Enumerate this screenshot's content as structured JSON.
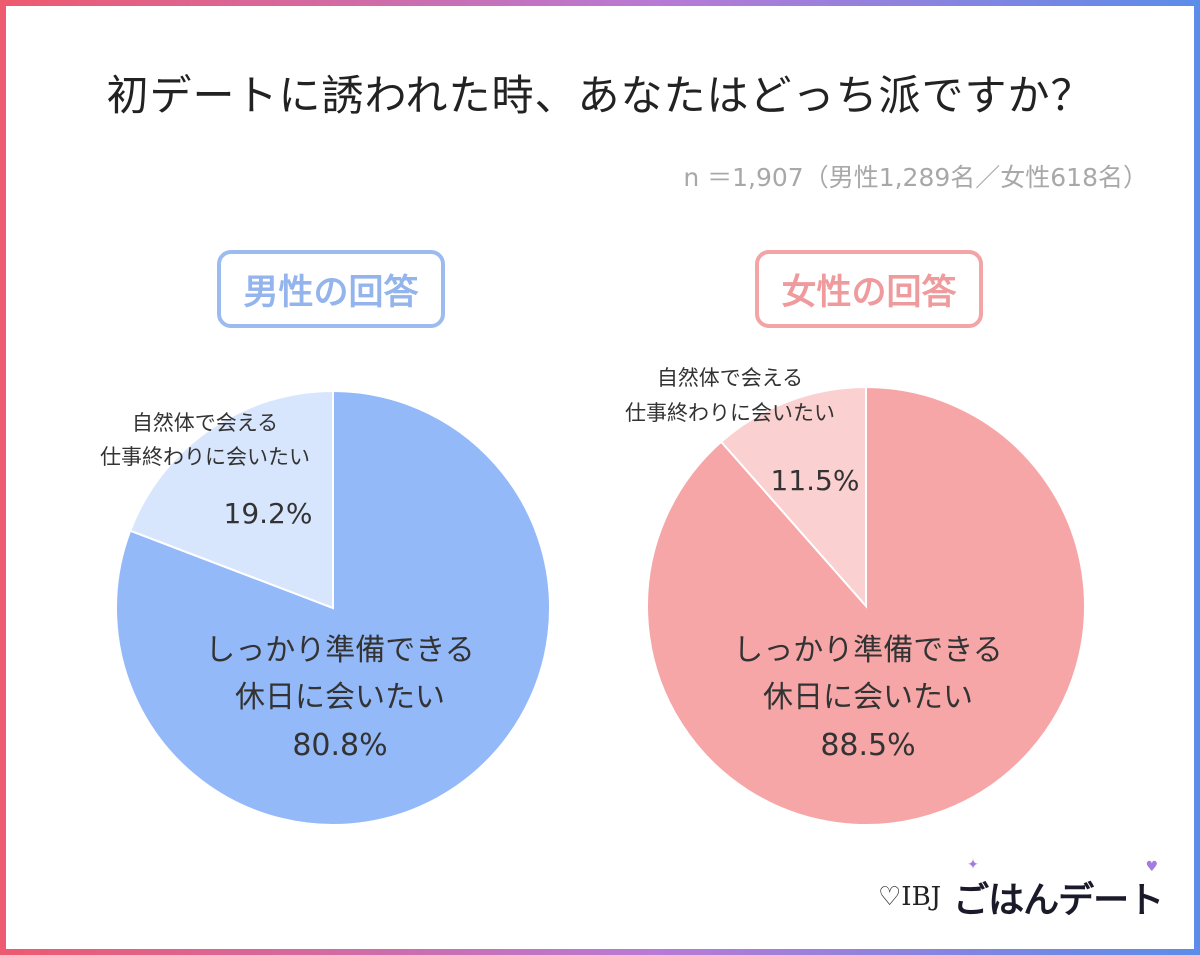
{
  "title": "初デートに誘われた時、あなたはどっち派ですか？",
  "sample_note": "n ＝1,907（男性1,289名／女性618名）",
  "logo": {
    "ibj": "♡IBJ",
    "brand": "ごはんデート"
  },
  "colors": {
    "male_major": "#93b9f8",
    "male_minor": "#d8e6fd",
    "female_major": "#f6a6a6",
    "female_minor": "#fbd0d0",
    "male_badge": "#9cbcf0",
    "female_badge": "#f2a4a6"
  },
  "chart_data": [
    {
      "type": "pie",
      "title": "男性の回答",
      "slices": [
        {
          "label_lines": [
            "しっかり準備できる",
            "休日に会いたい"
          ],
          "value": 80.8,
          "display": "80.8%"
        },
        {
          "label_lines": [
            "自然体で会える",
            "仕事終わりに会いたい"
          ],
          "value": 19.2,
          "display": "19.2%"
        }
      ]
    },
    {
      "type": "pie",
      "title": "女性の回答",
      "slices": [
        {
          "label_lines": [
            "しっかり準備できる",
            "休日に会いたい"
          ],
          "value": 88.5,
          "display": "88.5%"
        },
        {
          "label_lines": [
            "自然体で会える",
            "仕事終わりに会いたい"
          ],
          "value": 11.5,
          "display": "11.5%"
        }
      ]
    }
  ]
}
